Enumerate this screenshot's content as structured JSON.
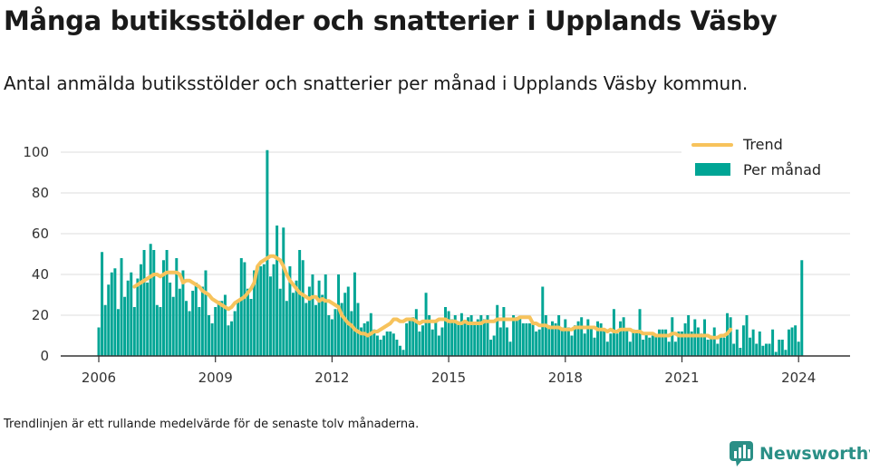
{
  "header": {
    "title": "Många butiksstölder och snatterier i Upplands Väsby",
    "subtitle": "Antal anmälda butiksstölder och snatterier per månad i Upplands Väsby kommun."
  },
  "footer": {
    "note": "Trendlinjen är ett rullande medelvärde för de senaste tolv månaderna.",
    "brand": "Newsworthy"
  },
  "colors": {
    "bars": "#00a595",
    "trend": "#f7c35c",
    "grid": "#dddddd",
    "brand": "#2a8f86"
  },
  "chart_data": {
    "type": "bar",
    "title": "",
    "xlabel": "",
    "ylabel": "",
    "ylim": [
      0,
      100
    ],
    "yticks": [
      0,
      20,
      40,
      60,
      80,
      100
    ],
    "xticks": [
      2006,
      2009,
      2012,
      2015,
      2018,
      2021,
      2024
    ],
    "grid": true,
    "legend_position": "top-right",
    "x_start": "2006-01",
    "x_end": "2024-05",
    "series": [
      {
        "name": "Per månad",
        "kind": "bar",
        "values": [
          14,
          51,
          25,
          35,
          41,
          43,
          23,
          48,
          29,
          37,
          41,
          24,
          38,
          45,
          52,
          36,
          55,
          52,
          25,
          24,
          47,
          52,
          36,
          29,
          48,
          33,
          42,
          27,
          22,
          32,
          36,
          24,
          34,
          42,
          20,
          16,
          24,
          27,
          27,
          30,
          15,
          17,
          22,
          27,
          48,
          46,
          33,
          28,
          42,
          43,
          44,
          45,
          101,
          39,
          45,
          64,
          33,
          63,
          27,
          44,
          31,
          37,
          52,
          47,
          26,
          34,
          40,
          25,
          37,
          30,
          40,
          20,
          18,
          23,
          40,
          26,
          31,
          34,
          22,
          41,
          26,
          14,
          16,
          17,
          21,
          13,
          10,
          8,
          10,
          12,
          12,
          11,
          8,
          5,
          3,
          16,
          18,
          19,
          23,
          12,
          15,
          31,
          20,
          13,
          17,
          10,
          14,
          24,
          22,
          18,
          20,
          17,
          21,
          16,
          19,
          20,
          16,
          18,
          20,
          18,
          20,
          8,
          10,
          25,
          14,
          24,
          14,
          7,
          20,
          19,
          19,
          16,
          16,
          16,
          16,
          12,
          13,
          34,
          20,
          15,
          17,
          16,
          20,
          14,
          18,
          14,
          10,
          15,
          17,
          19,
          11,
          18,
          14,
          9,
          17,
          16,
          13,
          7,
          11,
          23,
          11,
          17,
          19,
          13,
          7,
          13,
          12,
          23,
          8,
          11,
          9,
          10,
          10,
          13,
          13,
          13,
          7,
          19,
          7,
          12,
          12,
          16,
          20,
          12,
          18,
          14,
          11,
          18,
          8,
          10,
          14,
          6,
          9,
          9,
          21,
          19,
          6,
          13,
          4,
          15,
          20,
          9,
          13,
          6,
          12,
          5,
          6,
          6,
          13,
          2,
          8,
          8,
          3,
          13,
          14,
          15,
          7,
          47
        ]
      },
      {
        "name": "Trend",
        "kind": "line",
        "start": "2006-12",
        "values": [
          34,
          35,
          36,
          37,
          38,
          39,
          40,
          40,
          39,
          40,
          41,
          41,
          41,
          41,
          40,
          36,
          37,
          37,
          36,
          35,
          34,
          32,
          31,
          30,
          28,
          27,
          26,
          25,
          24,
          23,
          24,
          26,
          27,
          28,
          29,
          31,
          33,
          36,
          44,
          46,
          47,
          48,
          49,
          49,
          48,
          47,
          44,
          40,
          37,
          35,
          33,
          31,
          30,
          29,
          28,
          29,
          29,
          27,
          28,
          27,
          27,
          26,
          25,
          24,
          20,
          18,
          16,
          15,
          13,
          12,
          11,
          11,
          10,
          11,
          12,
          12,
          13,
          14,
          15,
          16,
          18,
          18,
          17,
          17,
          18,
          18,
          18,
          17,
          16,
          17,
          17,
          17,
          17,
          17,
          18,
          18,
          18,
          17,
          17,
          17,
          16,
          16,
          17,
          16,
          16,
          16,
          16,
          16,
          17,
          17,
          17,
          17,
          18,
          18,
          18,
          18,
          18,
          18,
          18,
          19,
          19,
          19,
          19,
          16,
          16,
          15,
          15,
          15,
          14,
          14,
          14,
          14,
          13,
          13,
          13,
          13,
          14,
          14,
          14,
          14,
          14,
          14,
          14,
          13,
          13,
          13,
          12,
          13,
          12,
          12,
          13,
          13,
          13,
          13,
          12,
          12,
          12,
          11,
          11,
          11,
          11,
          10,
          10,
          10,
          10,
          10,
          11,
          11,
          10,
          10,
          10,
          10,
          10,
          10,
          10,
          10,
          10,
          10,
          9,
          9,
          9,
          10,
          10,
          11,
          13
        ]
      }
    ]
  }
}
